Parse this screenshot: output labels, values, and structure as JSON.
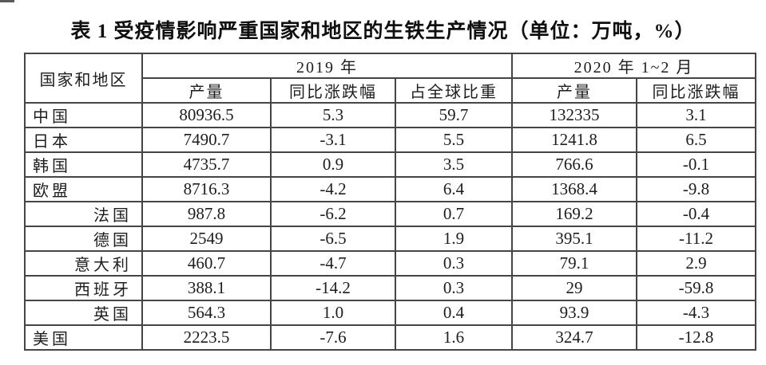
{
  "title": "表 1  受疫情影响严重国家和地区的生铁生产情况（单位：万吨，%）",
  "table": {
    "header": {
      "region": "国家和地区",
      "group_2019": "2019 年",
      "group_2020": "2020 年 1~2 月",
      "sub": [
        "产量",
        "同比涨跌幅",
        "占全球比重",
        "产量",
        "同比涨跌幅"
      ]
    },
    "rows": [
      {
        "region": "中国",
        "indent": false,
        "values": [
          "80936.5",
          "5.3",
          "59.7",
          "132335",
          "3.1"
        ]
      },
      {
        "region": "日本",
        "indent": false,
        "values": [
          "7490.7",
          "-3.1",
          "5.5",
          "1241.8",
          "6.5"
        ]
      },
      {
        "region": "韩国",
        "indent": false,
        "values": [
          "4735.7",
          "0.9",
          "3.5",
          "766.6",
          "-0.1"
        ]
      },
      {
        "region": "欧盟",
        "indent": false,
        "values": [
          "8716.3",
          "-4.2",
          "6.4",
          "1368.4",
          "-9.8"
        ]
      },
      {
        "region": "法国",
        "indent": true,
        "values": [
          "987.8",
          "-6.2",
          "0.7",
          "169.2",
          "-0.4"
        ]
      },
      {
        "region": "德国",
        "indent": true,
        "values": [
          "2549",
          "-6.5",
          "1.9",
          "395.1",
          "-11.2"
        ]
      },
      {
        "region": "意大利",
        "indent": true,
        "values": [
          "460.7",
          "-4.7",
          "0.3",
          "79.1",
          "2.9"
        ]
      },
      {
        "region": "西班牙",
        "indent": true,
        "values": [
          "388.1",
          "-14.2",
          "0.3",
          "29",
          "-59.8"
        ]
      },
      {
        "region": "英国",
        "indent": true,
        "values": [
          "564.3",
          "1.0",
          "0.4",
          "93.9",
          "-4.3"
        ]
      },
      {
        "region": "美国",
        "indent": false,
        "values": [
          "2223.5",
          "-7.6",
          "1.6",
          "324.7",
          "-12.8"
        ]
      }
    ]
  },
  "colors": {
    "text": "#1d1d1d",
    "border": "#454545",
    "background": "#ffffff"
  }
}
